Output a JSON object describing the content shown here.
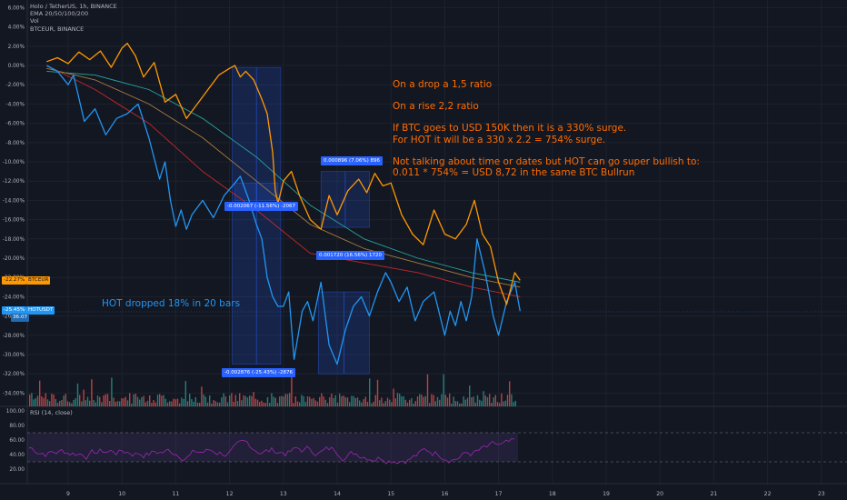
{
  "legend": {
    "title": "Holo / TetherUS, 1h, BINANCE",
    "ema": "EMA 20/50/100/200",
    "vol": "Vol",
    "compare": "BTCEUR, BINANCE"
  },
  "rsi": {
    "label": "RSI (14, close)",
    "ticks": [
      "100.00",
      "80.00",
      "60.00",
      "40.00",
      "20.00"
    ]
  },
  "price_axis": {
    "ticks": [
      "6.00%",
      "4.00%",
      "2.00%",
      "0.00%",
      "-2.00%",
      "-4.00%",
      "-6.00%",
      "-8.00%",
      "-10.00%",
      "-12.00%",
      "-14.00%",
      "-16.00%",
      "-18.00%",
      "-20.00%",
      "-22.00%",
      "-24.00%",
      "-26.00%",
      "-28.00%",
      "-30.00%",
      "-32.00%",
      "-34.00%"
    ]
  },
  "time_axis": {
    "ticks": [
      "9",
      "10",
      "11",
      "12",
      "13",
      "14",
      "15",
      "16",
      "17",
      "18",
      "19",
      "20",
      "21",
      "22",
      "23"
    ]
  },
  "tags": {
    "btc_value": "-22.27%",
    "btc_name": "BTCEUR",
    "hot_value": "-25.45%",
    "hot_name": "HOTUSDT",
    "hot_timer": "36:07"
  },
  "measure_labels": {
    "m1": "-0.002067 (-11.56%) -2067",
    "m2": "-0.002876 (-25.43%) -2876",
    "m3": "0.000896 (7.06%) 896",
    "m4": "0.001720 (16.56%) 1720"
  },
  "annotation": {
    "line1": "On a drop a 1,5 ratio",
    "line2": "On a rise 2,2 ratio",
    "line3": "If BTC goes to USD 150K then it is a 330% surge.",
    "line4": "For HOT it will be a 330 x 2.2 = 754% surge.",
    "line5": "Not talking about time or dates but HOT can go super bullish to:",
    "line6": "0.011 * 754% = USD 8,72 in the same BTC Bullrun"
  },
  "hot_note": "HOT dropped 18% in 20 bars",
  "colors": {
    "background": "#131722",
    "btc_line": "#ff9800",
    "hot_line": "#2196f3",
    "ema_green": "#26a69a",
    "ema_red": "#c62828",
    "ema_gold": "#a67c3d",
    "rsi_line": "#9c27b0",
    "volume_up": "#26a69a",
    "volume_down": "#ef5350",
    "annotation_text": "#ff6d00",
    "measure_box": "#2962ff"
  },
  "chart_data": {
    "type": "line",
    "x_unit": "day of month (hourly bars)",
    "y_unit": "% change",
    "ylim": [
      -35,
      7
    ],
    "series": [
      {
        "name": "BTCEUR",
        "x": [
          8.6,
          8.8,
          9.0,
          9.2,
          9.4,
          9.6,
          9.8,
          10.0,
          10.1,
          10.25,
          10.4,
          10.6,
          10.8,
          11.0,
          11.2,
          11.4,
          11.6,
          11.8,
          12.0,
          12.1,
          12.2,
          12.3,
          12.45,
          12.6,
          12.7,
          12.8,
          12.85,
          12.9,
          13.0,
          13.15,
          13.3,
          13.5,
          13.7,
          13.85,
          14.0,
          14.2,
          14.4,
          14.55,
          14.7,
          14.85,
          15.0,
          15.2,
          15.4,
          15.6,
          15.8,
          16.0,
          16.2,
          16.4,
          16.55,
          16.7,
          16.85,
          17.0,
          17.15,
          17.3,
          17.4
        ],
        "values": [
          0.4,
          0.8,
          0.2,
          1.4,
          0.6,
          1.5,
          -0.2,
          1.8,
          2.3,
          1.0,
          -1.2,
          0.3,
          -3.8,
          -3.0,
          -5.5,
          -4.0,
          -2.5,
          -1.0,
          -0.3,
          0.0,
          -1.2,
          -0.6,
          -1.5,
          -3.5,
          -5.0,
          -9.0,
          -13.0,
          -14.3,
          -12.0,
          -11.0,
          -13.5,
          -16.0,
          -17.0,
          -13.5,
          -15.5,
          -13.0,
          -11.8,
          -13.2,
          -11.2,
          -12.5,
          -12.2,
          -15.5,
          -17.5,
          -18.6,
          -15.0,
          -17.5,
          -18.0,
          -16.5,
          -14.0,
          -17.5,
          -18.8,
          -22.5,
          -24.8,
          -21.5,
          -22.3
        ]
      },
      {
        "name": "HOTUSDT",
        "x": [
          8.6,
          8.8,
          9.0,
          9.1,
          9.3,
          9.5,
          9.7,
          9.9,
          10.1,
          10.3,
          10.5,
          10.7,
          10.8,
          10.9,
          11.0,
          11.1,
          11.2,
          11.3,
          11.5,
          11.7,
          11.9,
          12.1,
          12.2,
          12.35,
          12.5,
          12.6,
          12.65,
          12.7,
          12.8,
          12.9,
          13.0,
          13.1,
          13.2,
          13.35,
          13.45,
          13.55,
          13.7,
          13.85,
          14.0,
          14.15,
          14.3,
          14.45,
          14.6,
          14.75,
          14.9,
          15.0,
          15.15,
          15.3,
          15.45,
          15.6,
          15.8,
          16.0,
          16.1,
          16.2,
          16.3,
          16.4,
          16.5,
          16.6,
          16.75,
          16.9,
          17.0,
          17.15,
          17.3,
          17.4
        ],
        "values": [
          0.0,
          -0.6,
          -2.0,
          -1.0,
          -5.8,
          -4.5,
          -7.2,
          -5.5,
          -5.0,
          -4.0,
          -7.5,
          -11.8,
          -10.0,
          -14.0,
          -16.7,
          -15.0,
          -17.0,
          -15.5,
          -14.0,
          -15.8,
          -13.5,
          -12.2,
          -11.5,
          -13.8,
          -16.5,
          -18.0,
          -20.0,
          -22.0,
          -24.0,
          -25.0,
          -25.0,
          -23.5,
          -30.5,
          -25.5,
          -24.5,
          -26.5,
          -22.5,
          -29.0,
          -31.0,
          -27.5,
          -25.0,
          -24.0,
          -26.0,
          -23.5,
          -21.5,
          -22.5,
          -24.5,
          -23.0,
          -26.5,
          -24.5,
          -23.5,
          -28.0,
          -25.5,
          -27.0,
          -24.5,
          -26.5,
          -24.0,
          -18.0,
          -21.5,
          -26.0,
          -28.0,
          -24.5,
          -22.5,
          -25.5
        ]
      },
      {
        "name": "EMA 20",
        "x": [
          8.6,
          9.5,
          10.5,
          11.5,
          12.5,
          13.5,
          14.5,
          15.5,
          16.5,
          17.4
        ],
        "values": [
          0.0,
          -2.5,
          -6.0,
          -11.0,
          -15.0,
          -19.5,
          -20.5,
          -21.5,
          -23.0,
          -24.0
        ]
      },
      {
        "name": "EMA 50",
        "x": [
          8.6,
          9.5,
          10.5,
          11.5,
          12.5,
          13.5,
          14.5,
          15.5,
          16.5,
          17.4
        ],
        "values": [
          -0.3,
          -1.5,
          -4.0,
          -7.5,
          -12.0,
          -16.5,
          -19.0,
          -20.5,
          -22.0,
          -23.0
        ]
      },
      {
        "name": "EMA 100",
        "x": [
          8.6,
          9.5,
          10.5,
          11.5,
          12.5,
          13.5,
          14.5,
          15.5,
          16.5,
          17.4
        ],
        "values": [
          -0.6,
          -1.0,
          -2.5,
          -5.5,
          -9.5,
          -14.5,
          -18.0,
          -20.0,
          -21.5,
          -22.5
        ]
      }
    ],
    "measurements": [
      {
        "label": "-0.002067 (-11.56%) -2067"
      },
      {
        "label": "-0.002876 (-25.43%) -2876"
      },
      {
        "label": "0.000896 (7.06%) 896"
      },
      {
        "label": "0.001720 (16.56%) 1720"
      }
    ]
  }
}
